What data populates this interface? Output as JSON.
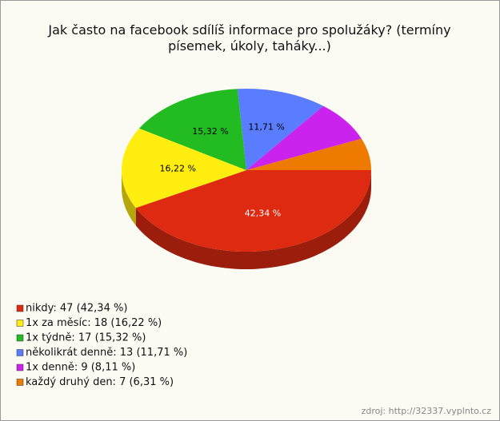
{
  "chart_data": {
    "type": "pie",
    "title": "Jak často na facebook sdílíš informace pro spolužáky? (termíny písemek, úkoly, taháky...)",
    "categories": [
      "nikdy",
      "1x za měsíc",
      "1x týdně",
      "několikrát denně",
      "1x denně",
      "každý druhý den"
    ],
    "values": [
      42.34,
      16.22,
      15.32,
      11.71,
      8.11,
      6.31
    ],
    "value_labels": [
      "42,34 %",
      "16,22 %",
      "15,32 %",
      "11,71 %",
      null,
      null
    ],
    "legend_labels": [
      "nikdy: 47 (42,34 %)",
      "1x za měsíc: 18 (16,22 %)",
      "1x týdně: 17 (15,32 %)",
      "několikrát denně: 13 (11,71 %)",
      "1x denně: 9 (8,11 %)",
      "každý druhý den: 7 (6,31 %)"
    ],
    "colors": [
      "#dd2a10",
      "#ffee10",
      "#22bb22",
      "#5a7dff",
      "#cc22ee",
      "#ee7a00"
    ],
    "source": "zdroj: http://32337.vyplnto.cz"
  }
}
